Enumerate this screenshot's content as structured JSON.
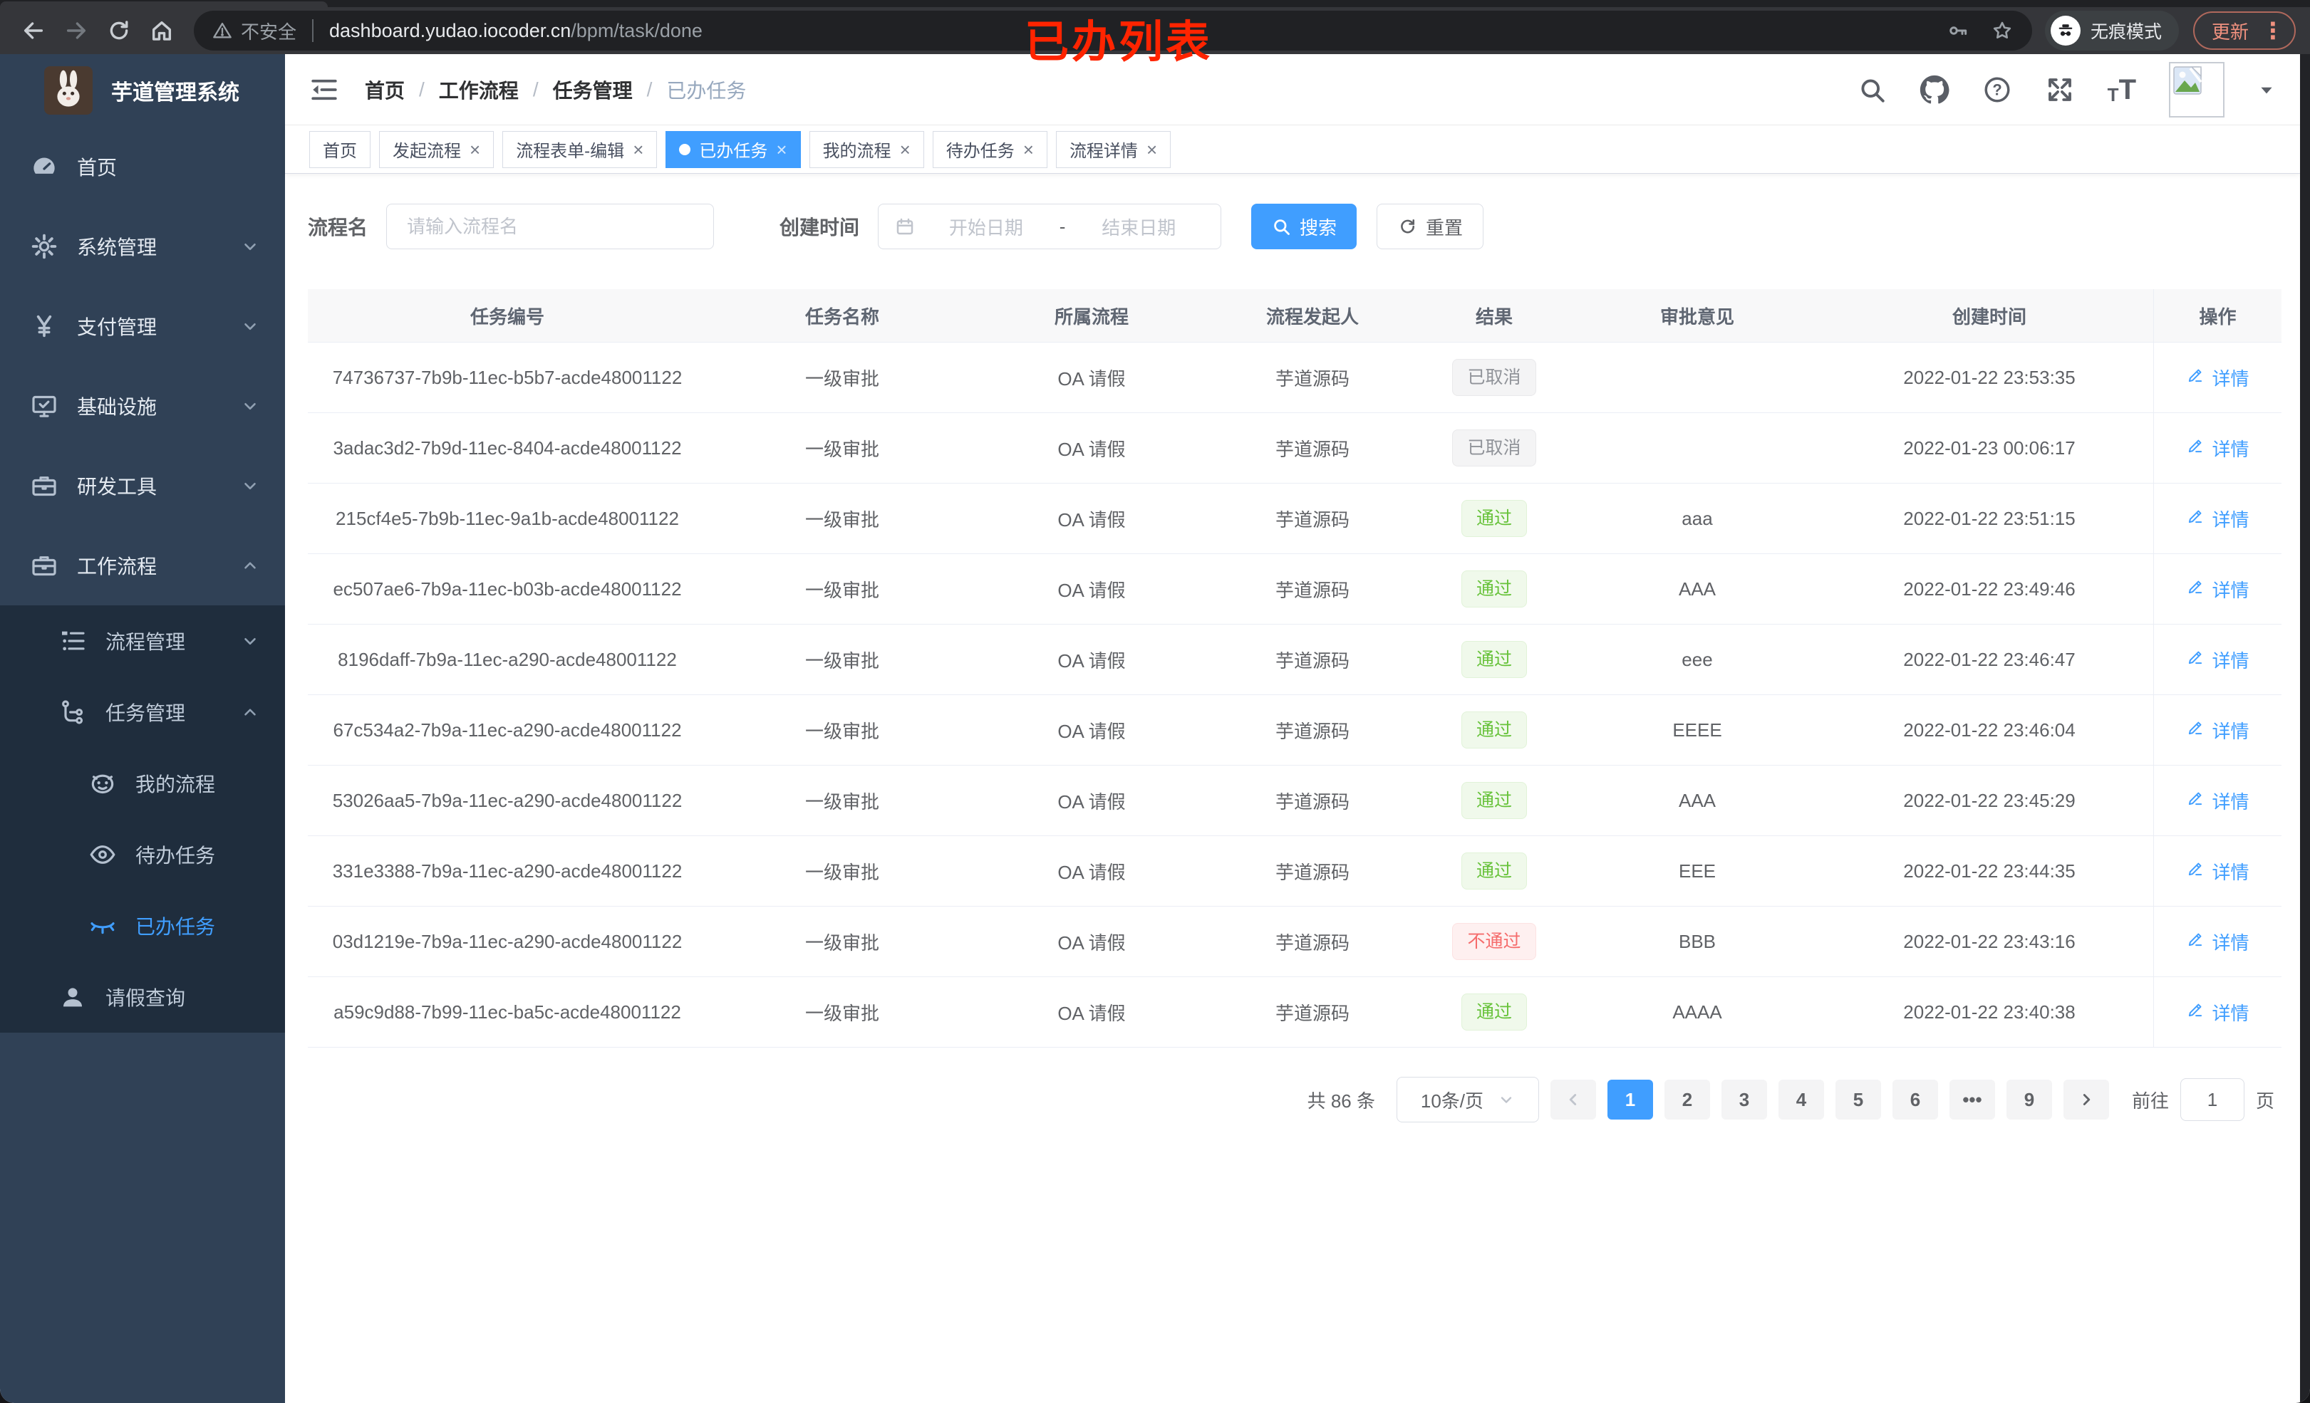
{
  "browser": {
    "security_label": "不安全",
    "url_host": "dashboard.yudao.iocoder.cn",
    "url_path": "/bpm/task/done",
    "incognito_label": "无痕模式",
    "update_label": "更新"
  },
  "annotation": {
    "text": "已办列表",
    "color": "#ff2400"
  },
  "sidebar": {
    "logo_title": "芋道管理系统",
    "items": [
      {
        "key": "homepage",
        "label": "首页",
        "icon": "dashboard-icon",
        "level": 1
      },
      {
        "key": "system",
        "label": "系统管理",
        "icon": "gear-icon",
        "level": 1,
        "arrow": "down"
      },
      {
        "key": "payment",
        "label": "支付管理",
        "icon": "yen-icon",
        "level": 1,
        "arrow": "down"
      },
      {
        "key": "infra",
        "label": "基础设施",
        "icon": "monitor-icon",
        "level": 1,
        "arrow": "down"
      },
      {
        "key": "devtools",
        "label": "研发工具",
        "icon": "toolbox-icon",
        "level": 1,
        "arrow": "down"
      },
      {
        "key": "workflow",
        "label": "工作流程",
        "icon": "toolbox-icon",
        "level": 1,
        "arrow": "up"
      },
      {
        "key": "process-mgmt",
        "label": "流程管理",
        "icon": "tree-list-icon",
        "level": 2,
        "arrow": "down"
      },
      {
        "key": "task-mgmt",
        "label": "任务管理",
        "icon": "flow-icon",
        "level": 2,
        "arrow": "up"
      },
      {
        "key": "my-process",
        "label": "我的流程",
        "icon": "robot-icon",
        "level": 3
      },
      {
        "key": "todo-tasks",
        "label": "待办任务",
        "icon": "eye-open-icon",
        "level": 3
      },
      {
        "key": "done-tasks",
        "label": "已办任务",
        "icon": "eye-closed-icon",
        "level": 3,
        "active": true
      },
      {
        "key": "leave-query",
        "label": "请假查询",
        "icon": "user-icon",
        "level": 2
      }
    ]
  },
  "breadcrumb": {
    "separator": "/",
    "items": [
      "首页",
      "工作流程",
      "任务管理",
      "已办任务"
    ]
  },
  "tabs": [
    {
      "label": "首页",
      "closable": false,
      "active": false
    },
    {
      "label": "发起流程",
      "closable": true,
      "active": false
    },
    {
      "label": "流程表单-编辑",
      "closable": true,
      "active": false
    },
    {
      "label": "已办任务",
      "closable": true,
      "active": true
    },
    {
      "label": "我的流程",
      "closable": true,
      "active": false
    },
    {
      "label": "待办任务",
      "closable": true,
      "active": false
    },
    {
      "label": "流程详情",
      "closable": true,
      "active": false
    }
  ],
  "filters": {
    "name_label": "流程名",
    "name_placeholder": "请输入流程名",
    "time_label": "创建时间",
    "start_placeholder": "开始日期",
    "range_separator": "-",
    "end_placeholder": "结束日期",
    "search_label": "搜索",
    "reset_label": "重置"
  },
  "table": {
    "headers": [
      "任务编号",
      "任务名称",
      "所属流程",
      "流程发起人",
      "结果",
      "审批意见",
      "创建时间",
      "操作"
    ],
    "detail_label": "详情",
    "rows": [
      {
        "id": "74736737-7b9b-11ec-b5b7-acde48001122",
        "name": "一级审批",
        "process": "OA 请假",
        "initiator": "芋道源码",
        "result": "已取消",
        "result_type": "info",
        "opinion": "",
        "time": "2022-01-22 23:53:35"
      },
      {
        "id": "3adac3d2-7b9d-11ec-8404-acde48001122",
        "name": "一级审批",
        "process": "OA 请假",
        "initiator": "芋道源码",
        "result": "已取消",
        "result_type": "info",
        "opinion": "",
        "time": "2022-01-23 00:06:17"
      },
      {
        "id": "215cf4e5-7b9b-11ec-9a1b-acde48001122",
        "name": "一级审批",
        "process": "OA 请假",
        "initiator": "芋道源码",
        "result": "通过",
        "result_type": "success",
        "opinion": "aaa",
        "time": "2022-01-22 23:51:15"
      },
      {
        "id": "ec507ae6-7b9a-11ec-b03b-acde48001122",
        "name": "一级审批",
        "process": "OA 请假",
        "initiator": "芋道源码",
        "result": "通过",
        "result_type": "success",
        "opinion": "AAA",
        "time": "2022-01-22 23:49:46"
      },
      {
        "id": "8196daff-7b9a-11ec-a290-acde48001122",
        "name": "一级审批",
        "process": "OA 请假",
        "initiator": "芋道源码",
        "result": "通过",
        "result_type": "success",
        "opinion": "eee",
        "time": "2022-01-22 23:46:47"
      },
      {
        "id": "67c534a2-7b9a-11ec-a290-acde48001122",
        "name": "一级审批",
        "process": "OA 请假",
        "initiator": "芋道源码",
        "result": "通过",
        "result_type": "success",
        "opinion": "EEEE",
        "time": "2022-01-22 23:46:04"
      },
      {
        "id": "53026aa5-7b9a-11ec-a290-acde48001122",
        "name": "一级审批",
        "process": "OA 请假",
        "initiator": "芋道源码",
        "result": "通过",
        "result_type": "success",
        "opinion": "AAA",
        "time": "2022-01-22 23:45:29"
      },
      {
        "id": "331e3388-7b9a-11ec-a290-acde48001122",
        "name": "一级审批",
        "process": "OA 请假",
        "initiator": "芋道源码",
        "result": "通过",
        "result_type": "success",
        "opinion": "EEE",
        "time": "2022-01-22 23:44:35"
      },
      {
        "id": "03d1219e-7b9a-11ec-a290-acde48001122",
        "name": "一级审批",
        "process": "OA 请假",
        "initiator": "芋道源码",
        "result": "不通过",
        "result_type": "danger",
        "opinion": "BBB",
        "time": "2022-01-22 23:43:16"
      },
      {
        "id": "a59c9d88-7b99-11ec-ba5c-acde48001122",
        "name": "一级审批",
        "process": "OA 请假",
        "initiator": "芋道源码",
        "result": "通过",
        "result_type": "success",
        "opinion": "AAAA",
        "time": "2022-01-22 23:40:38"
      }
    ]
  },
  "pagination": {
    "total_label": "共 86 条",
    "page_size_label": "10条/页",
    "pages": [
      "1",
      "2",
      "3",
      "4",
      "5",
      "6",
      "•••",
      "9"
    ],
    "active_page": "1",
    "jump_prefix": "前往",
    "jump_value": "1",
    "jump_suffix": "页"
  },
  "colors": {
    "accent": "#409eff",
    "success": "#67c23a",
    "danger": "#f56c6c",
    "info": "#909399",
    "sidebar_bg": "#304156",
    "submenu_bg": "#1f2d3d"
  }
}
